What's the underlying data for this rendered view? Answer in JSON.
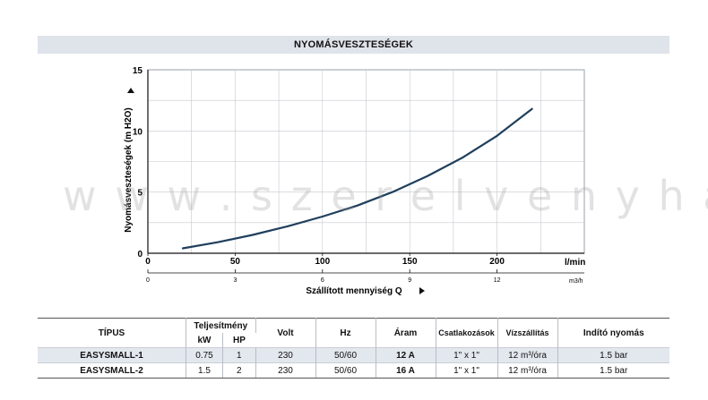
{
  "chart_data": {
    "type": "line",
    "title": "NYOMÁSVESZTESÉGEK",
    "ylabel": "Nyomásveszteségek (m H2O)",
    "xlabel": "Szállított mennyiség Q",
    "x_unit_primary": "l/min",
    "x_unit_secondary": "m3/h",
    "xlim": [
      0,
      250
    ],
    "ylim": [
      0,
      15
    ],
    "x_ticks": [
      0,
      50,
      100,
      150,
      200
    ],
    "x2_ticks": [
      0,
      3,
      6,
      9,
      12
    ],
    "y_ticks": [
      0,
      5,
      10,
      15
    ],
    "grid": true,
    "series": [
      {
        "x": [
          20,
          40,
          60,
          80,
          100,
          120,
          140,
          160,
          180,
          200,
          220
        ],
        "y": [
          0.4,
          0.9,
          1.5,
          2.2,
          3.0,
          3.9,
          5.0,
          6.3,
          7.8,
          9.6,
          11.8
        ]
      }
    ],
    "line_color": "#1f3f5c"
  },
  "watermark": "w w w . s z e r e l v e n y h a z . h u",
  "table": {
    "headers": {
      "tipus": "TÍPUS",
      "teljesitmeny": "Teljesítmény",
      "kw": "kW",
      "hp": "HP",
      "volt": "Volt",
      "hz": "Hz",
      "aram": "Áram",
      "csatlakozasok": "Csatlakozások",
      "vizszallitas": "Vízszállítás",
      "indito": "Indító nyomás"
    },
    "rows": [
      {
        "tipus": "EASYSMALL-1",
        "kw": "0.75",
        "hp": "1",
        "volt": "230",
        "hz": "50/60",
        "aram": "12 A",
        "csatl": "1\" x 1\"",
        "viz": "12 m³/óra",
        "indito": "1.5 bar"
      },
      {
        "tipus": "EASYSMALL-2",
        "kw": "1.5",
        "hp": "2",
        "volt": "230",
        "hz": "50/60",
        "aram": "16 A",
        "csatl": "1\" x 1\"",
        "viz": "12 m³/óra",
        "indito": "1.5 bar"
      }
    ]
  }
}
